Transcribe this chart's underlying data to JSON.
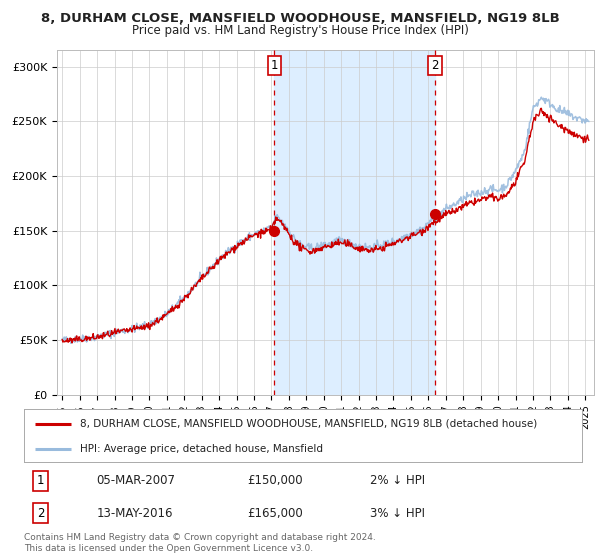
{
  "title1": "8, DURHAM CLOSE, MANSFIELD WOODHOUSE, MANSFIELD, NG19 8LB",
  "title2": "Price paid vs. HM Land Registry's House Price Index (HPI)",
  "ylabel_ticks": [
    "£0",
    "£50K",
    "£100K",
    "£150K",
    "£200K",
    "£250K",
    "£300K"
  ],
  "ytick_vals": [
    0,
    50000,
    100000,
    150000,
    200000,
    250000,
    300000
  ],
  "ylim": [
    0,
    315000
  ],
  "xlim_start": 1994.7,
  "xlim_end": 2025.5,
  "sale1_date": 2007.17,
  "sale1_price": 150000,
  "sale2_date": 2016.37,
  "sale2_price": 165000,
  "hpi_color": "#99bbdd",
  "price_color": "#cc0000",
  "shade_color": "#ddeeff",
  "bg_color": "#ffffff",
  "grid_color": "#cccccc",
  "legend1": "8, DURHAM CLOSE, MANSFIELD WOODHOUSE, MANSFIELD, NG19 8LB (detached house)",
  "legend2": "HPI: Average price, detached house, Mansfield",
  "table_row1": [
    "1",
    "05-MAR-2007",
    "£150,000",
    "2% ↓ HPI"
  ],
  "table_row2": [
    "2",
    "13-MAY-2016",
    "£165,000",
    "3% ↓ HPI"
  ],
  "footnote": "Contains HM Land Registry data © Crown copyright and database right 2024.\nThis data is licensed under the Open Government Licence v3.0.",
  "anchors_x": [
    1995,
    1996,
    1997,
    1998,
    1999,
    2000,
    2001,
    2002,
    2003,
    2004,
    2005,
    2006,
    2007.0,
    2007.3,
    2007.8,
    2008.3,
    2008.8,
    2009.3,
    2009.8,
    2010.3,
    2010.8,
    2011.3,
    2011.8,
    2012.3,
    2012.8,
    2013.3,
    2013.8,
    2014.3,
    2014.8,
    2015.3,
    2015.8,
    2016.0,
    2016.5,
    2017.0,
    2017.5,
    2018.0,
    2018.5,
    2019.0,
    2019.5,
    2020.0,
    2020.5,
    2021.0,
    2021.5,
    2022.0,
    2022.5,
    2023.0,
    2023.5,
    2024.0,
    2024.5,
    2025.2
  ],
  "anchors_hpi": [
    50000,
    51000,
    53000,
    57000,
    60000,
    64000,
    74000,
    89000,
    107000,
    124000,
    137000,
    147000,
    153000,
    163000,
    155000,
    143000,
    136000,
    134000,
    136000,
    138000,
    141000,
    140000,
    137000,
    135000,
    135000,
    137000,
    139000,
    142000,
    146000,
    149000,
    153000,
    158000,
    163000,
    170000,
    174000,
    179000,
    183000,
    185000,
    188000,
    187000,
    192000,
    205000,
    222000,
    262000,
    272000,
    266000,
    260000,
    257000,
    253000,
    250000
  ],
  "anchors_price": [
    49000,
    50500,
    52500,
    56500,
    59500,
    63000,
    73000,
    88000,
    106000,
    123000,
    136000,
    146000,
    151000,
    162000,
    152000,
    140000,
    133000,
    131000,
    134000,
    136000,
    139000,
    138000,
    135000,
    133000,
    132000,
    134000,
    137000,
    140000,
    144000,
    147000,
    151000,
    155000,
    159000,
    165000,
    168000,
    172000,
    176000,
    178000,
    181000,
    179000,
    183000,
    195000,
    212000,
    250000,
    260000,
    253000,
    246000,
    242000,
    237000,
    234000
  ]
}
